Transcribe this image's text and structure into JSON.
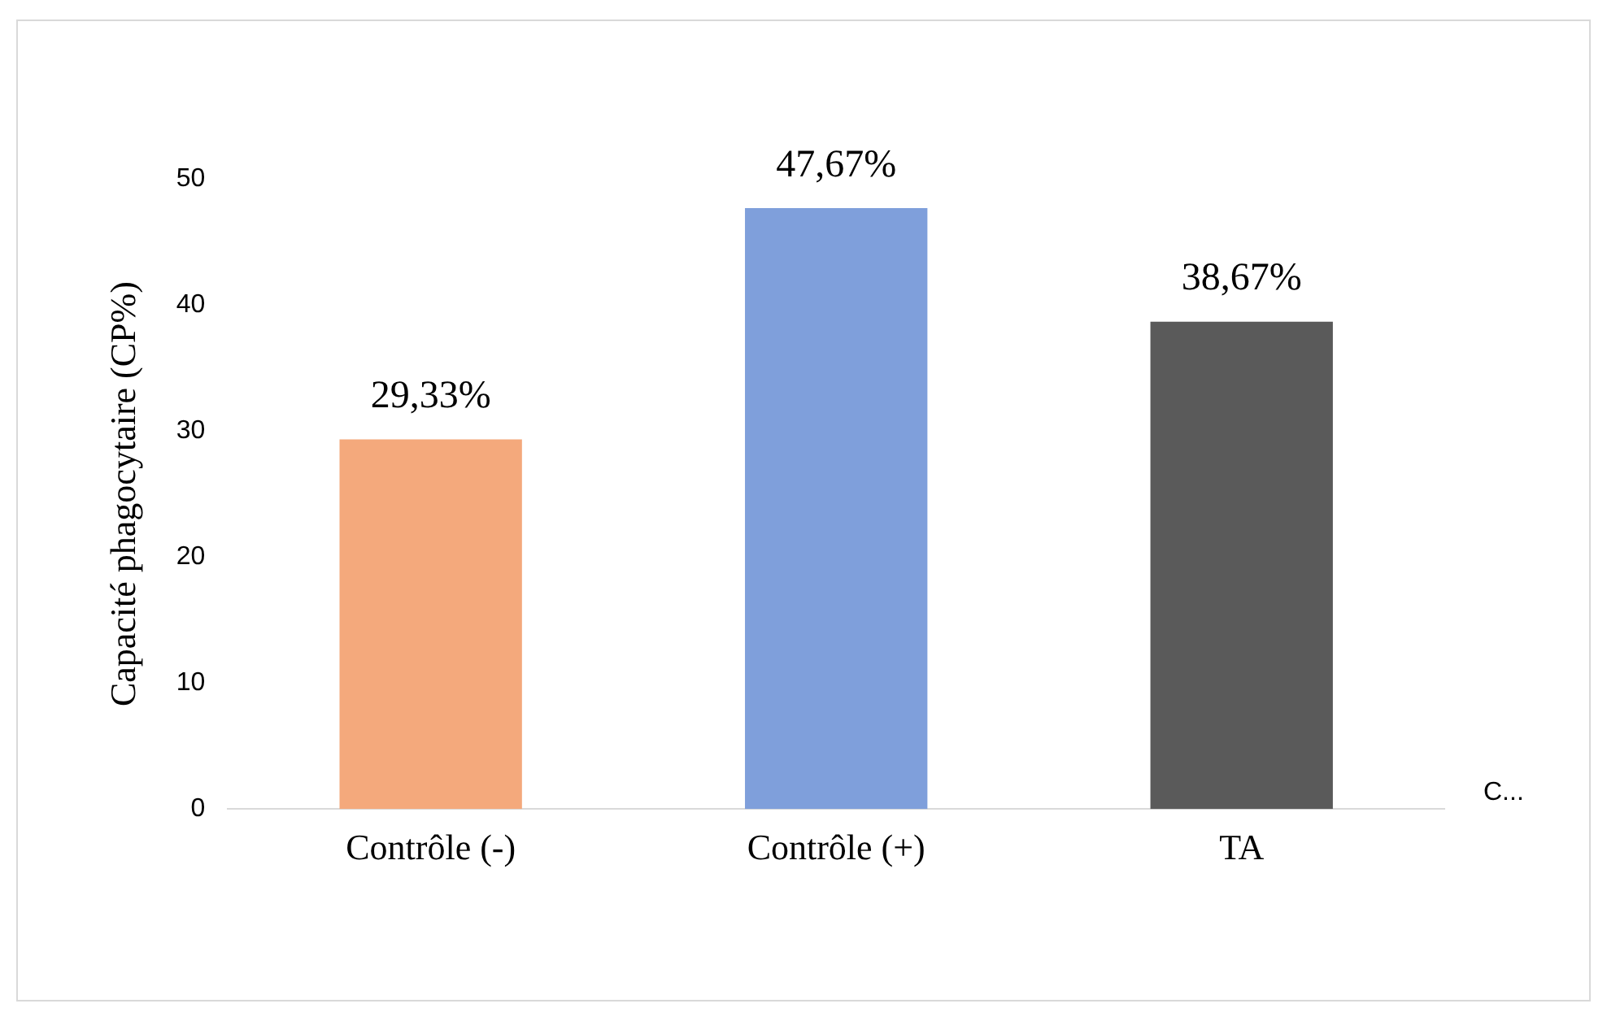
{
  "chart_data": {
    "type": "bar",
    "ylabel": "Capacité phagocytaire (CP%)",
    "categories": [
      "Contrôle (-)",
      "Contrôle (+)",
      "TA"
    ],
    "values": [
      29.33,
      47.67,
      38.67
    ],
    "colors": [
      "#f4a97c",
      "#7f9fdb",
      "#5a5a5a"
    ],
    "value_labels": [
      "29,33%",
      "47,67%",
      "38,67%"
    ],
    "ylim": [
      0,
      50
    ],
    "yticks": [
      0,
      10,
      20,
      30,
      40,
      50
    ],
    "grid": false,
    "legend": false,
    "annotations": [
      "C..."
    ]
  }
}
